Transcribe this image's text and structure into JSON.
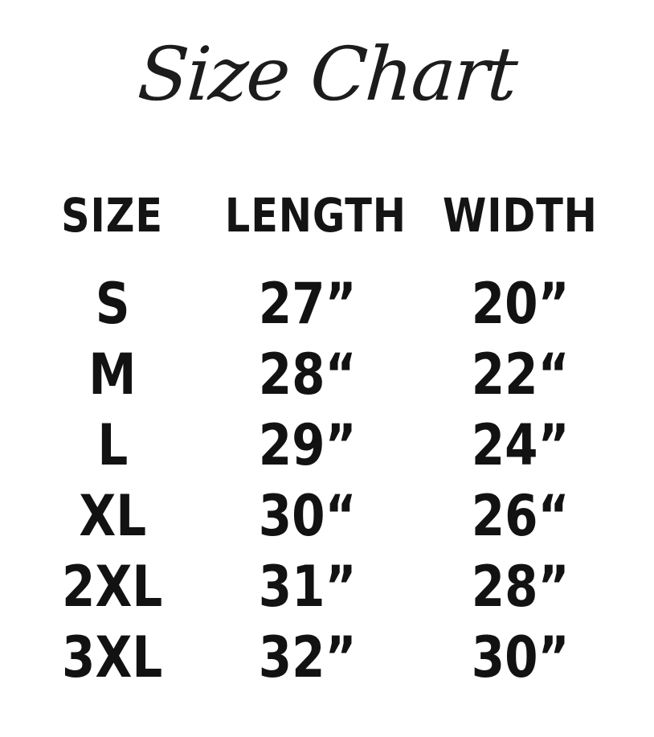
{
  "colors": {
    "background": "#ffffff",
    "text": "#171717"
  },
  "chart_data": {
    "type": "table",
    "title": "Size Chart",
    "columns": [
      "SIZE",
      "LENGTH",
      "WIDTH"
    ],
    "rows": [
      [
        "S",
        "27”",
        "20”"
      ],
      [
        "M",
        "28“",
        "22“"
      ],
      [
        "L",
        "29”",
        "24”"
      ],
      [
        "XL",
        "30“",
        "26“"
      ],
      [
        "2XL",
        "31”",
        "28”"
      ],
      [
        "3XL",
        "32”",
        "30”"
      ]
    ]
  }
}
